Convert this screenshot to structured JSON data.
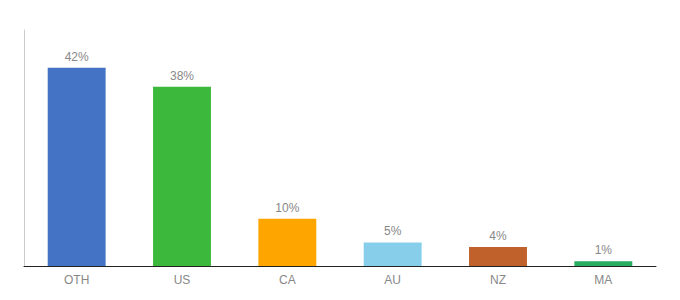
{
  "chart_data": {
    "type": "bar",
    "categories": [
      "OTH",
      "US",
      "CA",
      "AU",
      "NZ",
      "MA"
    ],
    "values": [
      42,
      38,
      10,
      5,
      4,
      1
    ],
    "value_labels": [
      "42%",
      "38%",
      "10%",
      "5%",
      "4%",
      "1%"
    ],
    "colors": [
      "#4472C4",
      "#3CB93C",
      "#FFA500",
      "#87CEEB",
      "#C0612B",
      "#27AE60"
    ],
    "ylim": [
      0,
      50
    ],
    "data_labels": true,
    "tick_labels": "x",
    "grid": false
  }
}
